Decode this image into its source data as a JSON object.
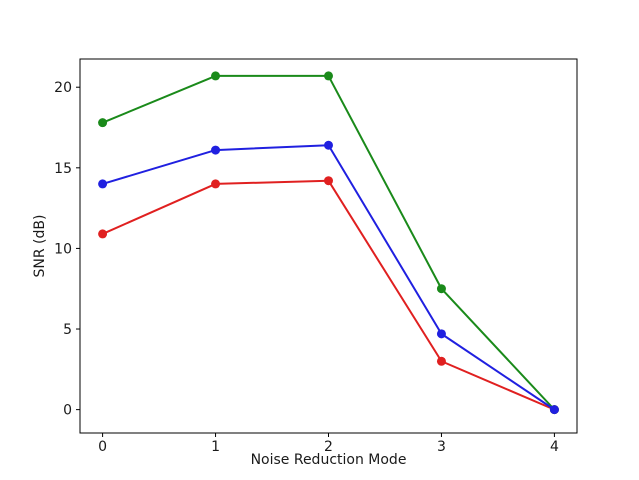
{
  "figure": {
    "background": "#ffffff",
    "text_color": "#1a1a1a",
    "spine_color": "#000000"
  },
  "chart_data": {
    "type": "line",
    "title": "",
    "xlabel": "Noise Reduction Mode",
    "ylabel": "SNR (dB)",
    "x": [
      0,
      1,
      2,
      3,
      4
    ],
    "series": [
      {
        "name": "red",
        "color": "#e02020",
        "values": [
          10.9,
          14.0,
          14.2,
          3.0,
          0.0
        ]
      },
      {
        "name": "green",
        "color": "#1a8a1a",
        "values": [
          17.8,
          20.7,
          20.7,
          7.5,
          0.0
        ]
      },
      {
        "name": "blue",
        "color": "#2020e0",
        "values": [
          14.0,
          16.1,
          16.4,
          4.7,
          0.0
        ]
      }
    ],
    "xticks": [
      "0",
      "1",
      "2",
      "3",
      "4"
    ],
    "xtick_values": [
      0,
      1,
      2,
      3,
      4
    ],
    "yticks": [
      "0",
      "5",
      "10",
      "15",
      "20"
    ],
    "ytick_values": [
      0,
      5,
      10,
      15,
      20
    ],
    "xlim": [
      -0.2,
      4.2
    ],
    "ylim": [
      -1.45,
      21.75
    ],
    "grid": false,
    "legend": "none",
    "marker": "circle",
    "line_width": 2,
    "marker_radius": 4.5
  }
}
